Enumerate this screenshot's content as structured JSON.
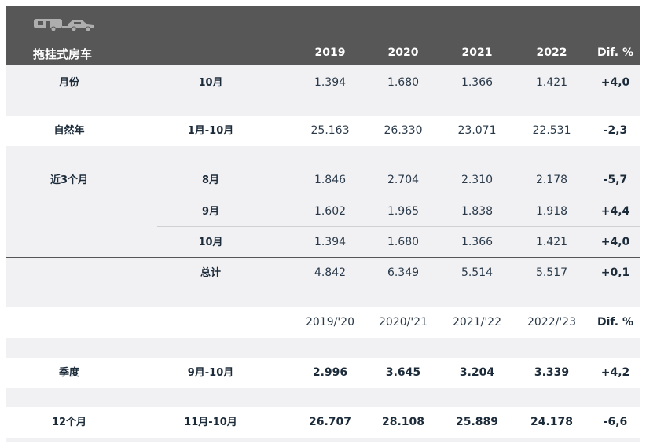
{
  "header": {
    "title": "拖挂式房车",
    "years": [
      "2019",
      "2020",
      "2021",
      "2022"
    ],
    "dif": "Dif. %"
  },
  "rows": [
    {
      "label": "月份",
      "period": "10月",
      "v": [
        "1.394",
        "1.680",
        "1.366",
        "1.421"
      ],
      "dif": "+4,0"
    },
    {
      "label": "自然年",
      "period": "1月-10月",
      "v": [
        "25.163",
        "26.330",
        "23.071",
        "22.531"
      ],
      "dif": "-2,3"
    },
    {
      "label": "近3个月",
      "period": "8月",
      "v": [
        "1.846",
        "2.704",
        "2.310",
        "2.178"
      ],
      "dif": "-5,7"
    },
    {
      "label": "",
      "period": "9月",
      "v": [
        "1.602",
        "1.965",
        "1.838",
        "1.918"
      ],
      "dif": "+4,4"
    },
    {
      "label": "",
      "period": "10月",
      "v": [
        "1.394",
        "1.680",
        "1.366",
        "1.421"
      ],
      "dif": "+4,0"
    },
    {
      "label": "",
      "period": "总计",
      "v": [
        "4.842",
        "6.349",
        "5.514",
        "5.517"
      ],
      "dif": "+0,1"
    }
  ],
  "season_header": {
    "years": [
      "2019/'20",
      "2020/'21",
      "2021/'22",
      "2022/'23"
    ],
    "dif": "Dif. %"
  },
  "season_rows": [
    {
      "label": "季度",
      "period": "9月-10月",
      "v": [
        "2.996",
        "3.645",
        "3.204",
        "3.339"
      ],
      "dif": "+4,2"
    },
    {
      "label": "12个月",
      "period": "11月-10月",
      "v": [
        "26.707",
        "28.108",
        "25.889",
        "24.178"
      ],
      "dif": "-6,6"
    }
  ]
}
